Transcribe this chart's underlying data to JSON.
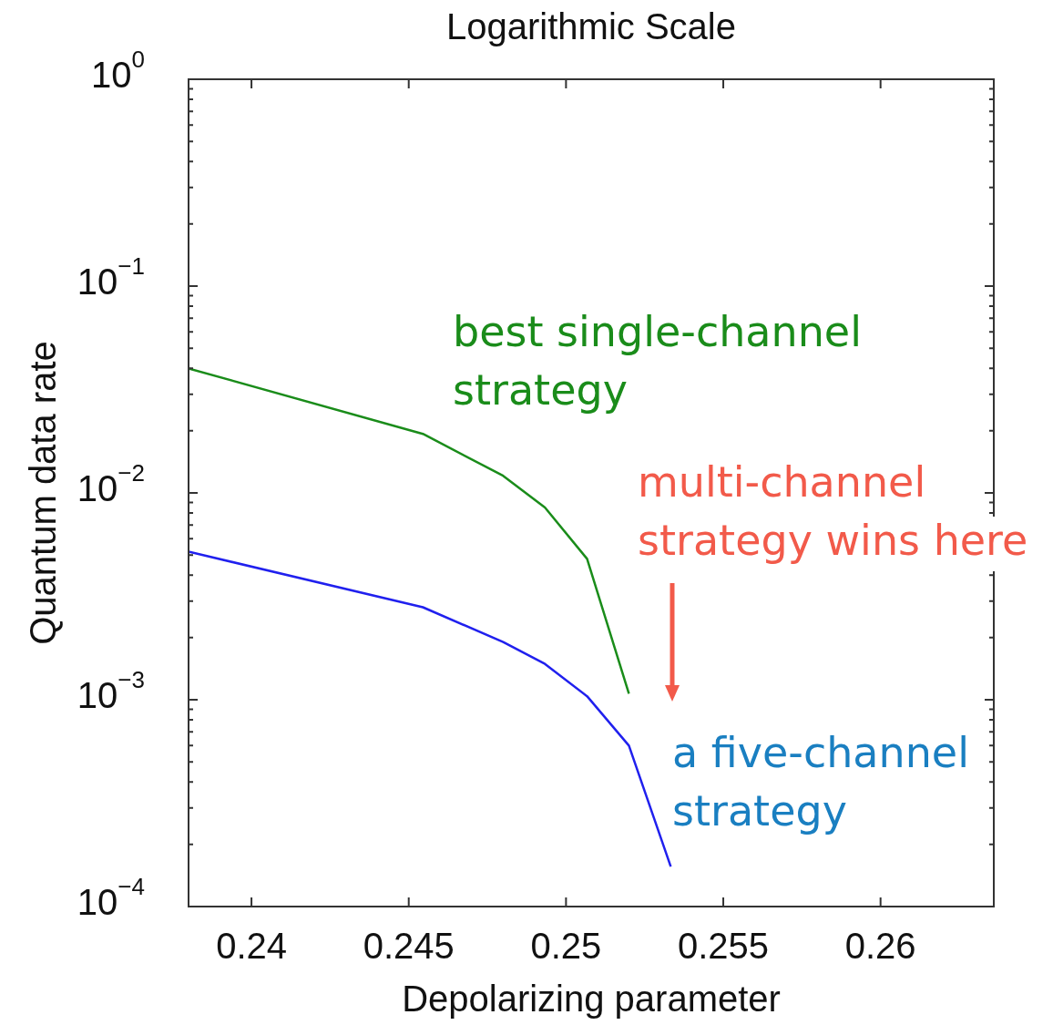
{
  "chart_data": {
    "type": "line",
    "title": "Logarithmic Scale",
    "xlabel": "Depolarizing parameter",
    "ylabel": "Quantum data rate",
    "x": [
      0.238,
      0.24545,
      0.248,
      0.24933,
      0.25067,
      0.252
    ],
    "series": [
      {
        "color": "#1a8c1a",
        "values": [
          0.04,
          0.0193,
          0.0121,
          0.0085,
          0.0048,
          0.00107
        ]
      },
      {
        "color": "#2020ee",
        "x": [
          0.238,
          0.24545,
          0.248,
          0.24933,
          0.25067,
          0.252,
          0.25333
        ],
        "values": [
          0.0052,
          0.0028,
          0.0019,
          0.00149,
          0.00104,
          0.0006,
          0.000156
        ]
      }
    ],
    "log": "y",
    "grid": false,
    "legend": false,
    "marker": "none",
    "line_style": "solid",
    "xlim": [
      0.238,
      0.2636
    ],
    "xticks": [
      0.24,
      0.245,
      0.25,
      0.255,
      0.26
    ],
    "ylim": [
      0.0001,
      1
    ],
    "yticks": [
      {
        "value": 0.0001,
        "label": "10$^{−4}$"
      },
      {
        "value": 0.0002,
        "label": null
      },
      {
        "value": 0.0003,
        "label": null
      },
      {
        "value": 0.0004,
        "label": null
      },
      {
        "value": 0.0005,
        "label": null
      },
      {
        "value": 0.0006,
        "label": null
      },
      {
        "value": 0.0007,
        "label": null
      },
      {
        "value": 0.0008,
        "label": null
      },
      {
        "value": 0.0009,
        "label": null
      },
      {
        "value": 0.001,
        "label": "10$^{−3}$"
      },
      {
        "value": 0.002,
        "label": null
      },
      {
        "value": 0.003,
        "label": null
      },
      {
        "value": 0.004,
        "label": null
      },
      {
        "value": 0.005,
        "label": null
      },
      {
        "value": 0.006,
        "label": null
      },
      {
        "value": 0.007,
        "label": null
      },
      {
        "value": 0.008,
        "label": null
      },
      {
        "value": 0.009,
        "label": null
      },
      {
        "value": 0.01,
        "label": "10$^{−2}$"
      },
      {
        "value": 0.02,
        "label": null
      },
      {
        "value": 0.03,
        "label": null
      },
      {
        "value": 0.04,
        "label": null
      },
      {
        "value": 0.05,
        "label": null
      },
      {
        "value": 0.06,
        "label": null
      },
      {
        "value": 0.07,
        "label": null
      },
      {
        "value": 0.08,
        "label": null
      },
      {
        "value": 0.09,
        "label": null
      },
      {
        "value": 0.1,
        "label": "10$^{−1}$"
      },
      {
        "value": 0.2,
        "label": null
      },
      {
        "value": 0.3,
        "label": null
      },
      {
        "value": 0.4,
        "label": null
      },
      {
        "value": 0.5,
        "label": null
      },
      {
        "value": 0.6,
        "label": null
      },
      {
        "value": 0.7,
        "label": null
      },
      {
        "value": 0.8,
        "label": null
      },
      {
        "value": 0.9,
        "label": null
      },
      {
        "value": 1,
        "label": "10$^{0}$"
      }
    ],
    "annotations": [
      "best single-channel strategy",
      "multi-channel strategy wins here",
      "a five-channel strategy"
    ]
  }
}
